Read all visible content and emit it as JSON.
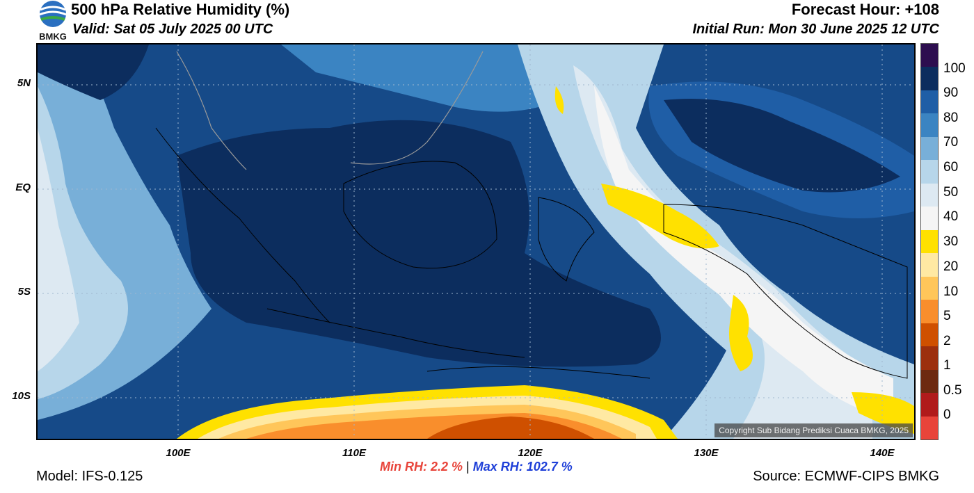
{
  "header": {
    "title": "500 hPa Relative Humidity (%)",
    "valid": "Valid: Sat 05 July 2025 00 UTC",
    "forecast_hour": "Forecast Hour: +108",
    "initial_run": "Initial Run: Mon 30 June 2025 12 UTC",
    "logo_text": "BMKG"
  },
  "axes": {
    "latitude_labels": [
      "5N",
      "EQ",
      "5S",
      "10S"
    ],
    "longitude_labels": [
      "100E",
      "110E",
      "120E",
      "130E",
      "140E"
    ]
  },
  "colorbar": {
    "labels": [
      "100",
      "90",
      "80",
      "70",
      "60",
      "50",
      "40",
      "30",
      "20",
      "10",
      "5",
      "2",
      "1",
      "0.5",
      "0"
    ],
    "colors": [
      "#2d0e4f",
      "#0c2d5e",
      "#1f5ea6",
      "#3b84c2",
      "#78afd8",
      "#b7d6ea",
      "#dde9f2",
      "#f5f5f5",
      "#ffe100",
      "#ffe9a3",
      "#ffc65a",
      "#f98e2c",
      "#cf5000",
      "#9c2f0e",
      "#6d2a10",
      "#b01b1b",
      "#e8443a"
    ]
  },
  "stats": {
    "min": "Min RH:   2.2 %",
    "separator": "|",
    "max": "Max RH: 102.7 %"
  },
  "footer": {
    "model": "Model: IFS-0.125",
    "source": "Source: ECMWF-CIPS BMKG",
    "copyright": "Copyright Sub Bidang Prediksi Cuaca BMKG, 2025"
  }
}
